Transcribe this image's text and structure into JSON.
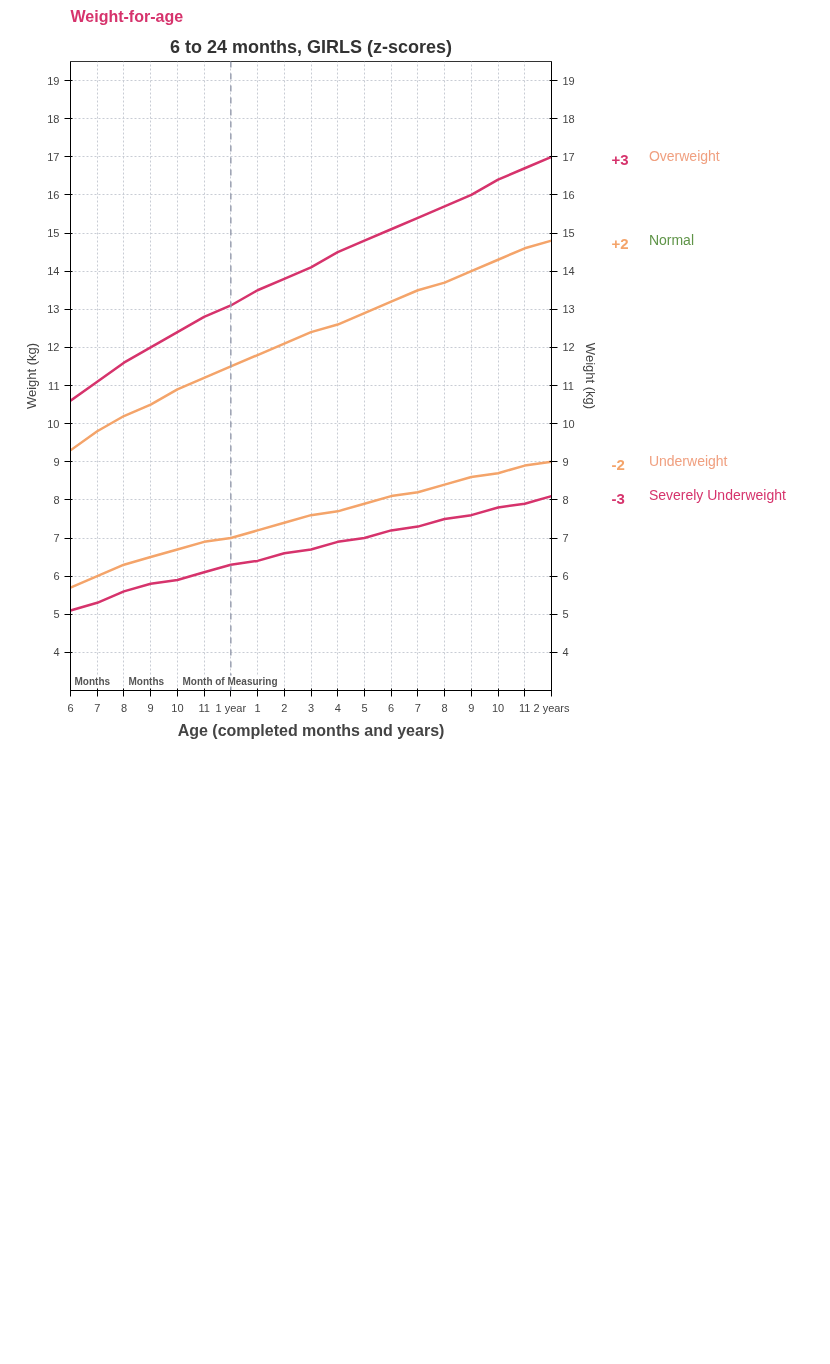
{
  "chart_data": {
    "type": "line",
    "title": "Weight-for-age",
    "subtitle": "6 to 24 months, GIRLS (z-scores)",
    "xlabel": "Age (completed months and years)",
    "ylabel": "Weight (kg)",
    "categories": [
      "6",
      "7",
      "8",
      "9",
      "10",
      "11",
      "1 year",
      "1",
      "2",
      "3",
      "4",
      "5",
      "6",
      "7",
      "8",
      "9",
      "10",
      "11",
      "2 years"
    ],
    "series": [
      {
        "name": "+3",
        "color": "#d6336c",
        "values": [
          10.6,
          11.1,
          11.6,
          12.0,
          12.4,
          12.8,
          13.1,
          13.5,
          13.8,
          14.1,
          14.5,
          14.8,
          15.1,
          15.4,
          15.7,
          16.0,
          16.4,
          16.7,
          17.0
        ]
      },
      {
        "name": "+2",
        "color": "#f4a46a",
        "values": [
          9.3,
          9.8,
          10.2,
          10.5,
          10.9,
          11.2,
          11.5,
          11.8,
          12.1,
          12.4,
          12.6,
          12.9,
          13.2,
          13.5,
          13.7,
          14.0,
          14.3,
          14.6,
          14.8
        ]
      },
      {
        "name": "-2",
        "color": "#f4a46a",
        "values": [
          5.7,
          6.0,
          6.3,
          6.5,
          6.7,
          6.9,
          7.0,
          7.2,
          7.4,
          7.6,
          7.7,
          7.9,
          8.1,
          8.2,
          8.4,
          8.6,
          8.7,
          8.9,
          9.0
        ]
      },
      {
        "name": "-3",
        "color": "#d6336c",
        "values": [
          5.1,
          5.3,
          5.6,
          5.8,
          5.9,
          6.1,
          6.3,
          6.4,
          6.6,
          6.7,
          6.9,
          7.0,
          7.2,
          7.3,
          7.5,
          7.6,
          7.8,
          7.9,
          8.1
        ]
      }
    ],
    "ylim": [
      3,
      19.5
    ],
    "yticks": [
      4,
      5,
      6,
      7,
      8,
      9,
      10,
      11,
      12,
      13,
      14,
      15,
      16,
      17,
      18,
      19
    ],
    "y2lim": [
      3,
      19.5
    ],
    "y2ticks": [
      4,
      5,
      6,
      7,
      8,
      9,
      10,
      11,
      12,
      13,
      14,
      15,
      16,
      17,
      18,
      19
    ],
    "ref_lines": [
      {
        "axis": "x",
        "value": "1 year",
        "color": "#9aa0b0",
        "line_style": "dashed"
      }
    ],
    "annotations": [
      "Overweight",
      "Normal",
      "Underweight",
      "Severely Underweight",
      "Months",
      "Months",
      "Month of Measuring"
    ],
    "grid": true,
    "marker": "none",
    "line_style": "solid"
  }
}
